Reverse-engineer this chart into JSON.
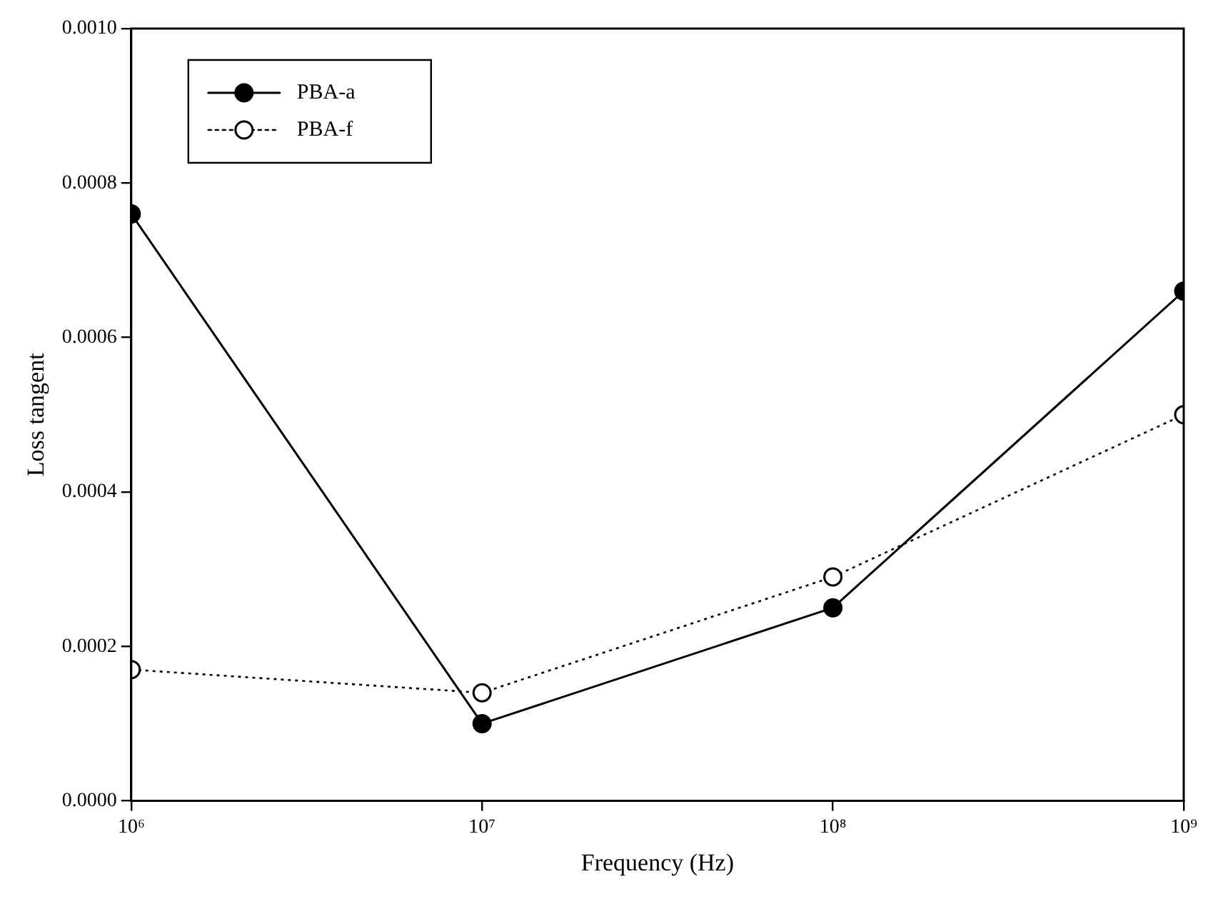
{
  "chart_data": {
    "type": "line",
    "xlabel": "Frequency (Hz)",
    "ylabel": "Loss tangent",
    "log": "x",
    "x": [
      1000000,
      10000000,
      100000000,
      1000000000
    ],
    "xlim": [
      1000000,
      1000000000
    ],
    "xticks": [
      {
        "value": 1000000,
        "label": "10⁶"
      },
      {
        "value": 10000000,
        "label": "10⁷"
      },
      {
        "value": 100000000,
        "label": "10⁸"
      },
      {
        "value": 1000000000,
        "label": "10⁹"
      }
    ],
    "ylim": [
      0,
      0.001
    ],
    "yticks": [
      {
        "value": 0,
        "label": "0.0000"
      },
      {
        "value": 0.0002,
        "label": "0.0002"
      },
      {
        "value": 0.0004,
        "label": "0.0004"
      },
      {
        "value": 0.0006,
        "label": "0.0006"
      },
      {
        "value": 0.0008,
        "label": "0.0008"
      },
      {
        "value": 0.001,
        "label": "0.0010"
      }
    ],
    "series": [
      {
        "name": "PBA-a",
        "color": "#000000",
        "line_style": "solid",
        "values": [
          0.00076,
          0.0001,
          0.00025,
          0.00066
        ]
      },
      {
        "name": "PBA-f",
        "color": "#000000",
        "line_style": "dotted",
        "values": [
          0.00017,
          0.00014,
          0.00029,
          0.0005
        ]
      }
    ],
    "marker": "circle",
    "grid": false,
    "legend": "top left"
  }
}
